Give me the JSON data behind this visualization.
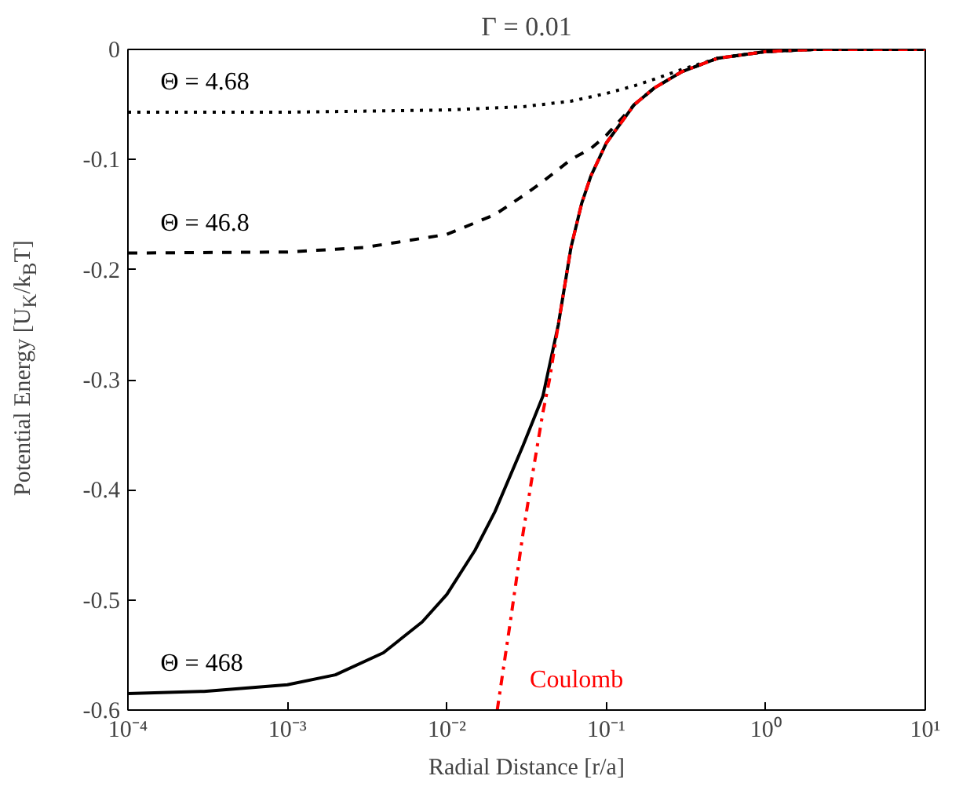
{
  "chart_data": {
    "type": "line",
    "title": "Γ = 0.01",
    "xlabel": "Radial Distance [r/a]",
    "ylabel": "Potential Energy [U$_{K}$/k$_{B}$T]",
    "log": "x",
    "grid": false,
    "marker": "none",
    "xlim": [
      0.0001,
      10
    ],
    "xticks": [
      {
        "value": 0.0001,
        "label": "10⁻⁴"
      },
      {
        "value": 0.001,
        "label": "10⁻³"
      },
      {
        "value": 0.01,
        "label": "10⁻²"
      },
      {
        "value": 0.1,
        "label": "10⁻¹"
      },
      {
        "value": 1,
        "label": "10⁰"
      },
      {
        "value": 10,
        "label": "10¹"
      }
    ],
    "ylim": [
      -0.6,
      0
    ],
    "yticks": [
      -0.6,
      -0.5,
      -0.4,
      -0.3,
      -0.2,
      -0.1,
      0
    ],
    "series": [
      {
        "name": "Θ = 4.68",
        "color": "#000000",
        "line_style": "dotted",
        "x": [
          0.0001,
          0.001,
          0.01,
          0.03,
          0.06,
          0.1,
          0.15,
          0.2,
          0.3,
          0.5,
          1,
          2,
          10
        ],
        "values": [
          -0.057,
          -0.057,
          -0.055,
          -0.052,
          -0.047,
          -0.04,
          -0.033,
          -0.027,
          -0.018,
          -0.008,
          -0.002,
          0,
          0
        ]
      },
      {
        "name": "Θ = 46.8",
        "color": "#000000",
        "line_style": "dashed",
        "x": [
          0.0001,
          0.001,
          0.003,
          0.01,
          0.02,
          0.03,
          0.04,
          0.06,
          0.08,
          0.1,
          0.15,
          0.2,
          0.3,
          0.5,
          1,
          2,
          10
        ],
        "values": [
          -0.185,
          -0.184,
          -0.18,
          -0.168,
          -0.15,
          -0.133,
          -0.12,
          -0.1,
          -0.09,
          -0.078,
          -0.05,
          -0.035,
          -0.02,
          -0.008,
          -0.002,
          0,
          0
        ]
      },
      {
        "name": "Θ = 468",
        "color": "#000000",
        "line_style": "solid",
        "x": [
          0.0001,
          0.0003,
          0.001,
          0.002,
          0.004,
          0.007,
          0.01,
          0.015,
          0.02,
          0.03,
          0.04,
          0.05,
          0.06,
          0.07,
          0.08,
          0.1,
          0.15,
          0.2,
          0.3,
          0.5,
          1,
          2,
          10
        ],
        "values": [
          -0.585,
          -0.583,
          -0.577,
          -0.568,
          -0.548,
          -0.52,
          -0.495,
          -0.455,
          -0.42,
          -0.36,
          -0.315,
          -0.25,
          -0.18,
          -0.14,
          -0.115,
          -0.085,
          -0.05,
          -0.035,
          -0.02,
          -0.008,
          -0.002,
          0,
          0
        ]
      },
      {
        "name": "Coulomb",
        "color": "#ff0000",
        "line_style": "dashdot",
        "x": [
          0.0207,
          0.025,
          0.03,
          0.035,
          0.04,
          0.044,
          0.05,
          0.06,
          0.07,
          0.08,
          0.1,
          0.15,
          0.2,
          0.3,
          0.5,
          1,
          2,
          10
        ],
        "values": [
          -0.6,
          -0.52,
          -0.44,
          -0.38,
          -0.33,
          -0.3,
          -0.25,
          -0.18,
          -0.14,
          -0.115,
          -0.085,
          -0.05,
          -0.035,
          -0.02,
          -0.008,
          -0.002,
          0,
          0
        ]
      }
    ]
  }
}
